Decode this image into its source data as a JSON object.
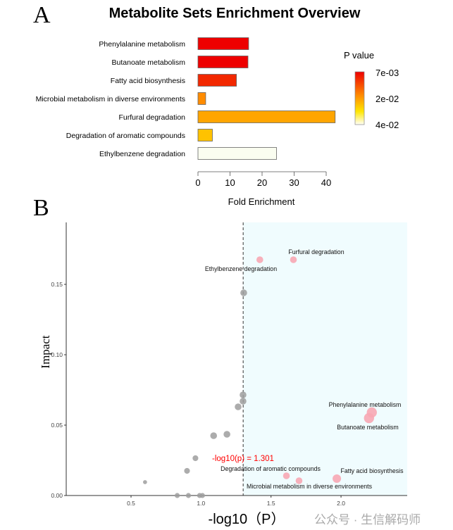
{
  "chart_data": [
    {
      "panel_label": "A",
      "type": "bar",
      "orientation": "horizontal",
      "title": "Metabolite Sets Enrichment Overview",
      "xlabel": "Fold Enrichment",
      "ylabel": "",
      "xlim": [
        0,
        40
      ],
      "xticks": [
        0,
        10,
        20,
        30,
        40
      ],
      "categories": [
        "Phenylalanine metabolism",
        "Butanoate metabolism",
        "Fatty acid biosynthesis",
        "Microbial metabolism in diverse environments",
        "Furfural degradation",
        "Degradation of aromatic compounds",
        "Ethylbenzene degradation"
      ],
      "values": [
        15.8,
        15.6,
        12.0,
        2.4,
        42.8,
        4.5,
        24.5
      ],
      "colors": [
        "#EE0000",
        "#EE0000",
        "#F22800",
        "#FF8C00",
        "#FFA500",
        "#FFC200",
        "#FAFDF0"
      ],
      "legend": {
        "title": "P value",
        "labels": [
          "7e-03",
          "2e-02",
          "4e-02"
        ],
        "gradient": [
          "#EE0000",
          "#FF8C00",
          "#FFE600",
          "#FFFFF8"
        ],
        "placement": "right"
      }
    },
    {
      "panel_label": "B",
      "type": "scatter",
      "xlabel": "-log10（P）",
      "ylabel": "Impact",
      "xlim": [
        0.04,
        2.47
      ],
      "ylim": [
        0,
        0.194
      ],
      "xticks": [
        "0.5",
        "1.0",
        "1.5",
        "2.0"
      ],
      "yticks": [
        "0.00",
        "0.05",
        "0.10",
        "0.15"
      ],
      "threshold": {
        "x": 1.301,
        "label": "-log10(p) = 1.301",
        "color": "#FF0000"
      },
      "shade_color": "#F0FCFE",
      "points": [
        {
          "x": 1.66,
          "y": 0.1675,
          "size": 2,
          "significant": true,
          "label": "Furfural degradation"
        },
        {
          "x": 1.42,
          "y": 0.1675,
          "size": 2,
          "significant": true,
          "label": "Ethylbenzene degradation"
        },
        {
          "x": 2.22,
          "y": 0.059,
          "size": 3,
          "significant": true,
          "label": "Phenylalanine metabolism"
        },
        {
          "x": 2.2,
          "y": 0.055,
          "size": 3,
          "significant": true,
          "label": "Butanoate metabolism"
        },
        {
          "x": 1.61,
          "y": 0.014,
          "size": 2,
          "significant": true,
          "label": "Degradation of aromatic compounds"
        },
        {
          "x": 1.97,
          "y": 0.012,
          "size": 2.5,
          "significant": true,
          "label": "Fatty acid biosynthesis"
        },
        {
          "x": 1.7,
          "y": 0.0105,
          "size": 2,
          "significant": true,
          "label": "Microbial metabolism in diverse environments"
        },
        {
          "x": 1.305,
          "y": 0.144,
          "size": 2,
          "significant": false,
          "label": ""
        },
        {
          "x": 1.3,
          "y": 0.0715,
          "size": 2,
          "significant": false,
          "label": ""
        },
        {
          "x": 1.3,
          "y": 0.067,
          "size": 2,
          "significant": false,
          "label": ""
        },
        {
          "x": 1.265,
          "y": 0.063,
          "size": 2,
          "significant": false,
          "label": ""
        },
        {
          "x": 1.185,
          "y": 0.0435,
          "size": 2,
          "significant": false,
          "label": ""
        },
        {
          "x": 1.09,
          "y": 0.0425,
          "size": 2,
          "significant": false,
          "label": ""
        },
        {
          "x": 0.96,
          "y": 0.0265,
          "size": 1.7,
          "significant": false,
          "label": ""
        },
        {
          "x": 0.9,
          "y": 0.0175,
          "size": 1.7,
          "significant": false,
          "label": ""
        },
        {
          "x": 0.6,
          "y": 0.0095,
          "size": 1.2,
          "significant": false,
          "label": ""
        },
        {
          "x": 0.83,
          "y": 0.0,
          "size": 1.5,
          "significant": false,
          "label": ""
        },
        {
          "x": 0.91,
          "y": 0.0,
          "size": 1.5,
          "significant": false,
          "label": ""
        },
        {
          "x": 0.99,
          "y": 0.0,
          "size": 1.5,
          "significant": false,
          "label": ""
        },
        {
          "x": 1.01,
          "y": 0.0,
          "size": 1.5,
          "significant": false,
          "label": ""
        }
      ],
      "colors": {
        "significant": "#F7A7B4",
        "nonsignificant": "#9E9E9E"
      }
    }
  ],
  "watermark": "公众号 · 生信解码师"
}
